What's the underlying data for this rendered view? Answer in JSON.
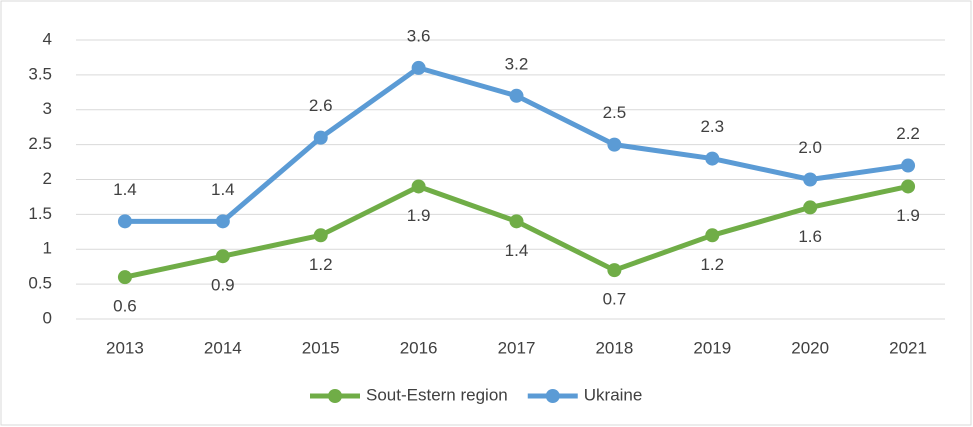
{
  "chart_data": {
    "type": "line",
    "categories": [
      "2013",
      "2014",
      "2015",
      "2016",
      "2017",
      "2018",
      "2019",
      "2020",
      "2021"
    ],
    "series": [
      {
        "name": "Sout-Estern region",
        "color": "#70ad47",
        "values": [
          0.6,
          0.9,
          1.2,
          1.9,
          1.4,
          0.7,
          1.2,
          1.6,
          1.9
        ]
      },
      {
        "name": "Ukraine",
        "color": "#5b9bd5",
        "values": [
          1.4,
          1.4,
          2.6,
          3.6,
          3.2,
          2.5,
          2.3,
          2,
          2.2
        ],
        "value_labels": [
          "1.4",
          "1.4",
          "2.6",
          "3.6",
          "3.2",
          "2.5",
          "2.3",
          "2.0",
          "2.2"
        ]
      }
    ],
    "ylim": [
      0,
      4
    ],
    "yticks": [
      0,
      0.5,
      1,
      1.5,
      2,
      2.5,
      3,
      3.5,
      4
    ],
    "grid": true,
    "legend": "bottom"
  }
}
